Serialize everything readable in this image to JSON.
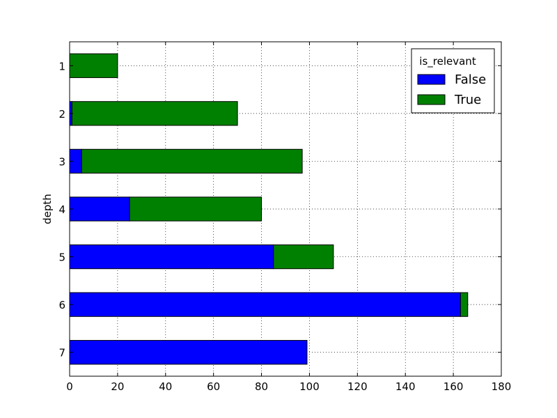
{
  "chart_data": {
    "type": "bar",
    "orientation": "horizontal",
    "stacked": true,
    "categories": [
      "1",
      "2",
      "3",
      "4",
      "5",
      "6",
      "7"
    ],
    "series": [
      {
        "name": "False",
        "color": "#0000ff",
        "values": [
          0,
          1,
          5,
          25,
          85,
          163,
          99
        ]
      },
      {
        "name": "True",
        "color": "#008000",
        "values": [
          20,
          69,
          92,
          55,
          25,
          3,
          0
        ]
      }
    ],
    "xlim": [
      0,
      180
    ],
    "xticks": [
      "0",
      "20",
      "40",
      "60",
      "80",
      "100",
      "120",
      "140",
      "160",
      "180"
    ],
    "xlabel": "",
    "ylabel": "depth",
    "grid": true,
    "legend": {
      "title": "is_relevant",
      "placement": "top-right"
    }
  }
}
